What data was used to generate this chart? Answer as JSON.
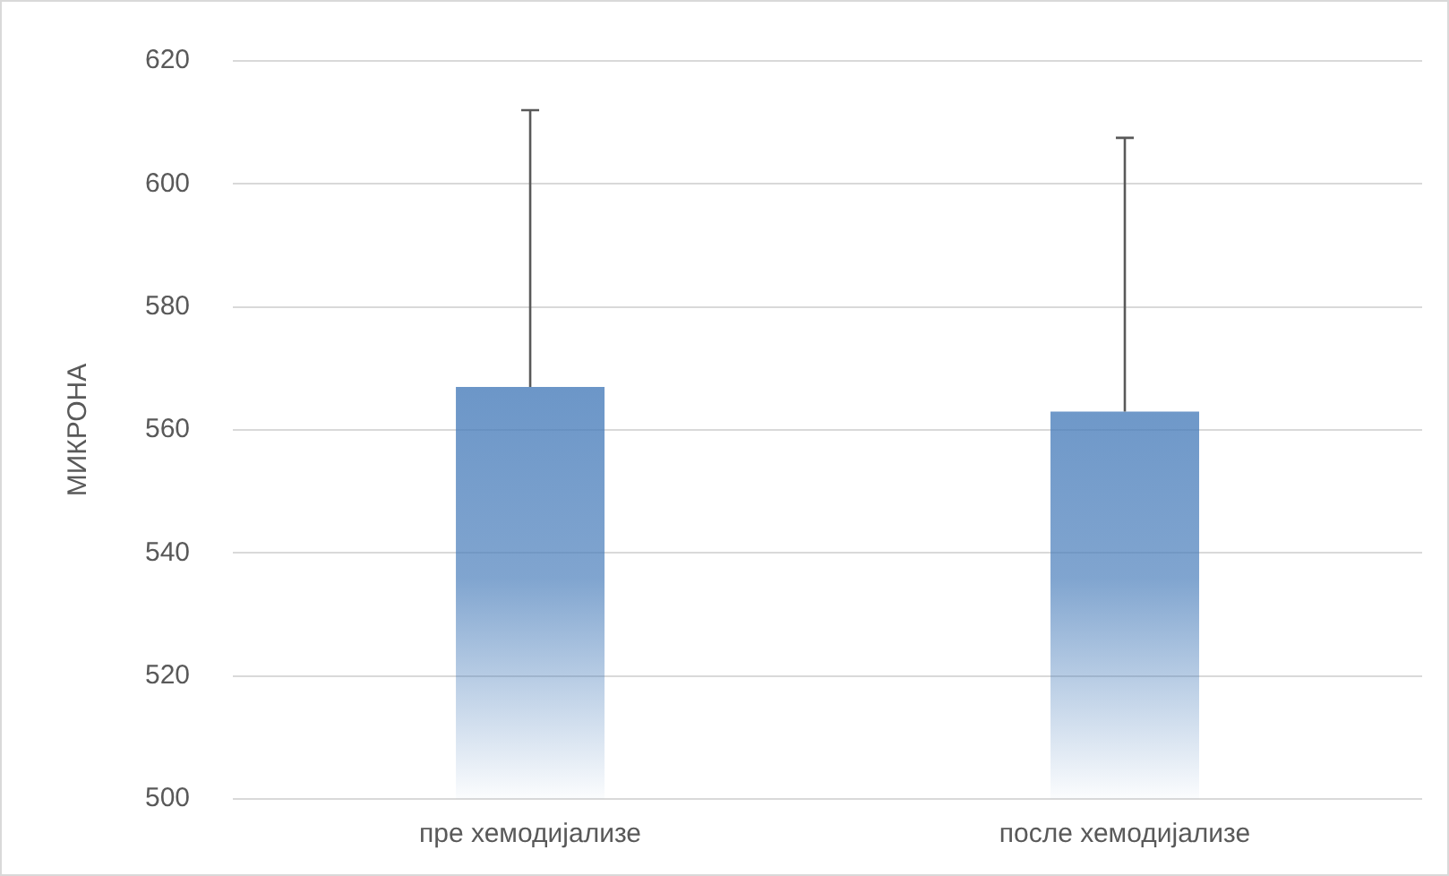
{
  "chart_data": {
    "type": "bar",
    "ylabel": "МИКРОНА",
    "categories": [
      "пре хемодијализе",
      "после хемодијализе"
    ],
    "values": [
      567,
      563
    ],
    "errors": [
      [
        567,
        612
      ],
      [
        563,
        607.5
      ]
    ],
    "color": "#4a7ebb",
    "ylim": [
      500,
      620
    ],
    "yticks": [
      500,
      520,
      540,
      560,
      580,
      600,
      620
    ],
    "grid": "y",
    "legend": false
  }
}
